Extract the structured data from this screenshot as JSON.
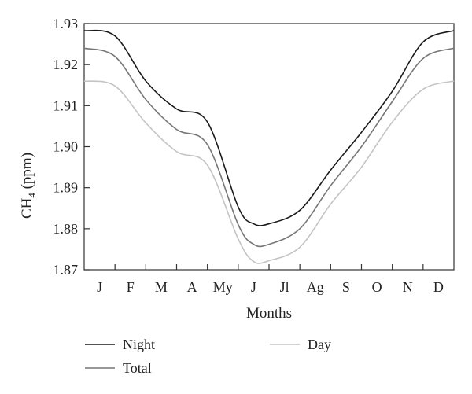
{
  "chart_data": {
    "type": "line",
    "title": "",
    "xlabel": "Months",
    "ylabel_main": "CH",
    "ylabel_sub": "4",
    "ylabel_unit": " (ppm)",
    "categories": [
      "J",
      "F",
      "M",
      "A",
      "My",
      "J",
      "Jl",
      "Ag",
      "S",
      "O",
      "N",
      "D"
    ],
    "ylim": [
      1.87,
      1.93
    ],
    "yticks": [
      "1.87",
      "1.88",
      "1.89",
      "1.90",
      "1.91",
      "1.92",
      "1.93"
    ],
    "grid": false,
    "legend_position": "bottom",
    "series": [
      {
        "name": "Night",
        "color": "#1a1a1a",
        "x": [
          0.5,
          1,
          2,
          3,
          4,
          5,
          5.5,
          6,
          7,
          8,
          9,
          10,
          11,
          11.5
        ],
        "values": [
          1.9283,
          1.927,
          1.916,
          1.9092,
          1.906,
          1.8853,
          1.8812,
          1.8812,
          1.8845,
          1.8943,
          1.9035,
          1.9135,
          1.9255,
          1.9283
        ]
      },
      {
        "name": "Total",
        "color": "#777777",
        "x": [
          0.5,
          1,
          2,
          3,
          4,
          5,
          5.5,
          6,
          7,
          8,
          9,
          10,
          11,
          11.5
        ],
        "values": [
          1.924,
          1.922,
          1.9115,
          1.9042,
          1.9005,
          1.881,
          1.8762,
          1.8762,
          1.88,
          1.8905,
          1.9,
          1.911,
          1.9215,
          1.924
        ]
      },
      {
        "name": "Day",
        "color": "#c4c4c4",
        "x": [
          0.5,
          1,
          2,
          3,
          4,
          5,
          5.5,
          6,
          7,
          8,
          9,
          10,
          11,
          11.5
        ],
        "values": [
          1.916,
          1.9148,
          1.9058,
          1.8988,
          1.8955,
          1.8775,
          1.872,
          1.8722,
          1.8755,
          1.886,
          1.895,
          1.906,
          1.914,
          1.916
        ]
      }
    ]
  }
}
